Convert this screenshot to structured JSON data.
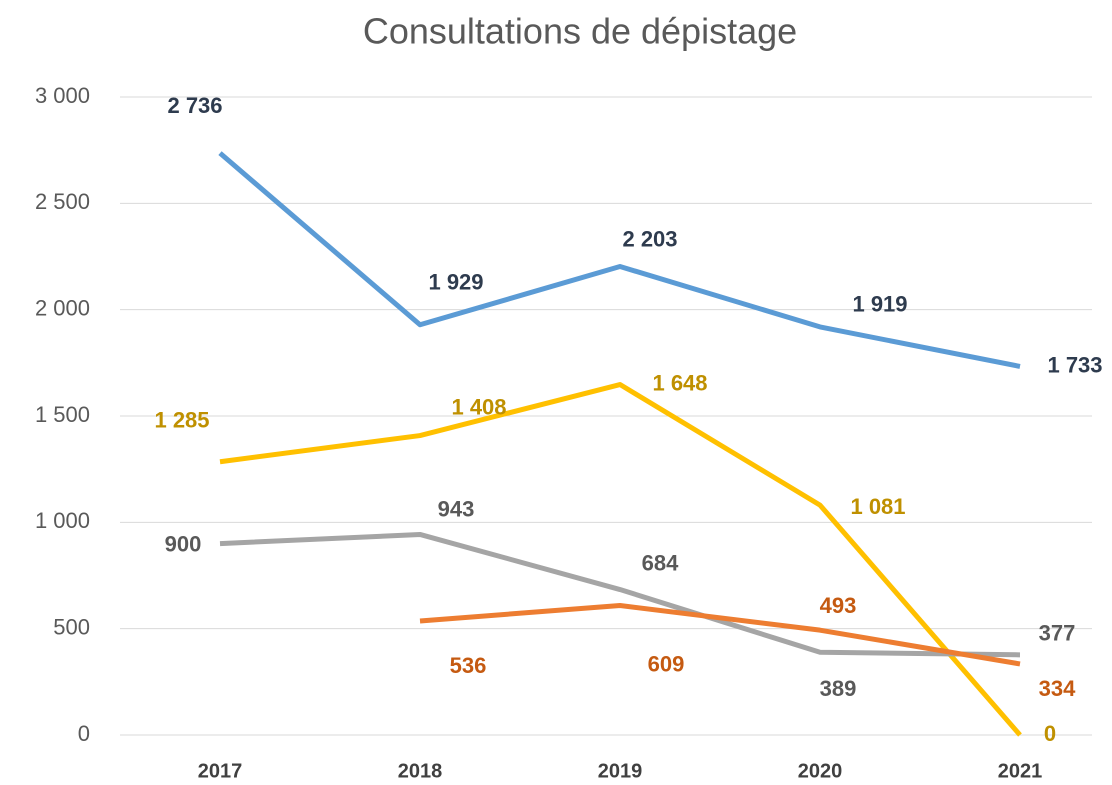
{
  "chart_data": {
    "type": "line",
    "title": "Consultations de dépistage",
    "categories": [
      "2017",
      "2018",
      "2019",
      "2020",
      "2021"
    ],
    "series": [
      {
        "color": "#5b9bd5",
        "label_color": "#2e3b4e",
        "values": [
          2736,
          1929,
          2203,
          1919,
          1733
        ],
        "value_labels": [
          "2 736",
          "1 929",
          "2 203",
          "1 919",
          "1 733"
        ]
      },
      {
        "color": "#ffc000",
        "label_color": "#bf9000",
        "values": [
          1285,
          1408,
          1648,
          1081,
          0
        ],
        "value_labels": [
          "1 285",
          "1 408",
          "1 648",
          "1 081",
          "0"
        ]
      },
      {
        "color": "#a5a5a5",
        "label_color": "#595959",
        "values": [
          900,
          943,
          684,
          389,
          377
        ],
        "value_labels": [
          "900",
          "943",
          "684",
          "389",
          "377"
        ]
      },
      {
        "color": "#ed7d31",
        "label_color": "#c55a11",
        "values": [
          null,
          536,
          609,
          493,
          334
        ],
        "value_labels": [
          null,
          "536",
          "609",
          "493",
          "334"
        ]
      }
    ],
    "ylim": [
      0,
      3000
    ],
    "yticks": [
      0,
      500,
      {
        "value": 1000,
        "label": "1 000"
      },
      {
        "value": 1500,
        "label": "1 500"
      },
      {
        "value": 2000,
        "label": "2 000"
      },
      {
        "value": 2500,
        "label": "2 500"
      },
      {
        "value": 3000,
        "label": "3 000"
      }
    ],
    "grid": true
  }
}
